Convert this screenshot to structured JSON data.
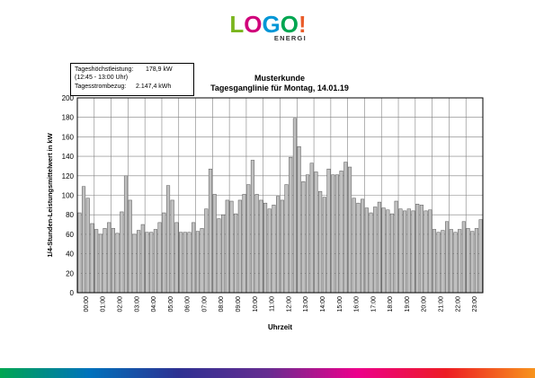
{
  "logo": {
    "letters": [
      "L",
      "O",
      "G",
      "O",
      "!"
    ],
    "letter_colors": [
      "#7ab51d",
      "#d0007a",
      "#0096d6",
      "#00a651",
      "#e95c2a"
    ],
    "subtitle": "ENERGIE"
  },
  "annotation": {
    "peak_label": "Tageshöchstleistung:",
    "peak_value": "178,9 kW",
    "peak_time": "(12:45 - 13:00 Uhr)",
    "consumption_label": "Tagesstrombezug:",
    "consumption_value": "2.147,4 kWh"
  },
  "colors": {
    "bar_fill": "#c0c0c0",
    "bar_stroke": "#555555",
    "grid": "#808080",
    "gradient": [
      "#00a651",
      "#0072bc",
      "#2e3192",
      "#662d91",
      "#ec008c",
      "#ed1c24",
      "#f7941d"
    ]
  },
  "chart_data": {
    "type": "bar",
    "title": "Musterkunde",
    "subtitle": "Tagesganglinie für Montag, 14.01.19",
    "xlabel": "Uhrzeit",
    "ylabel": "1/4-Stunden-Leistungsmittelwert in kW",
    "ylim": [
      0,
      200
    ],
    "yticks": [
      0,
      20,
      40,
      60,
      80,
      100,
      120,
      140,
      160,
      180,
      200
    ],
    "grid": true,
    "xtick_labels": [
      "00:00",
      "01:00",
      "02:00",
      "03:00",
      "04:00",
      "05:00",
      "06:00",
      "07:00",
      "08:00",
      "09:00",
      "10:00",
      "11:00",
      "12:00",
      "13:00",
      "14:00",
      "15:00",
      "16:00",
      "17:00",
      "18:00",
      "19:00",
      "20:00",
      "21:00",
      "22:00",
      "23:00"
    ],
    "values": [
      82,
      109,
      97,
      71,
      65,
      60,
      66,
      72,
      66,
      61,
      83,
      120,
      95,
      60,
      64,
      70,
      62,
      62,
      65,
      72,
      82,
      110,
      95,
      72,
      62,
      62,
      62,
      72,
      63,
      66,
      86,
      127,
      101,
      76,
      80,
      95,
      94,
      81,
      95,
      101,
      111,
      136,
      101,
      95,
      92,
      86,
      90,
      99,
      95,
      111,
      139,
      179,
      150,
      114,
      121,
      133,
      124,
      104,
      98,
      127,
      121,
      121,
      125,
      134,
      129,
      97,
      92,
      96,
      87,
      82,
      88,
      93,
      87,
      85,
      81,
      94,
      86,
      84,
      86,
      84,
      91,
      90,
      84,
      85,
      65,
      62,
      64,
      73,
      65,
      62,
      65,
      73,
      66,
      63,
      66,
      75
    ]
  }
}
